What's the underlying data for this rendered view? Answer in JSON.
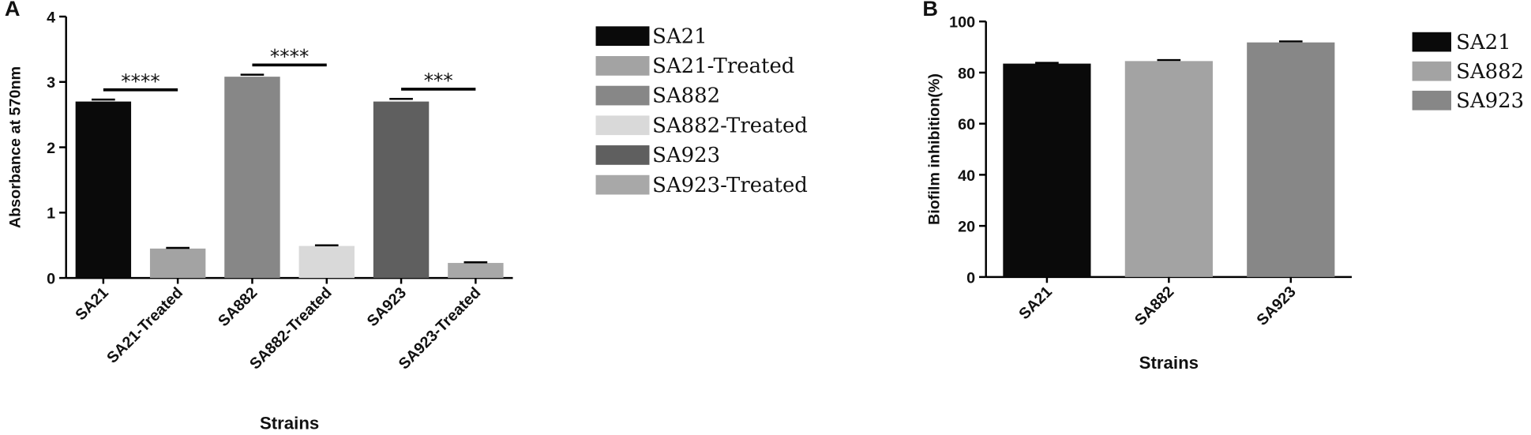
{
  "chart_data": [
    {
      "type": "bar",
      "panel": "A",
      "ylabel": "Absorbance at 570nm",
      "xlabel": "Strains",
      "categories": [
        "SA21",
        "SA21-Treated",
        "SA882",
        "SA882-Treated",
        "SA923",
        "SA923-Treated"
      ],
      "values": [
        2.7,
        0.45,
        3.08,
        0.49,
        2.7,
        0.23
      ],
      "errors": [
        0.03,
        0.01,
        0.03,
        0.01,
        0.04,
        0.01
      ],
      "colors": [
        "#0a0a0a",
        "#a3a3a3",
        "#878787",
        "#d9d9d9",
        "#5f5f5f",
        "#a8a8a8"
      ],
      "annotations": [
        "****",
        "****",
        "***"
      ],
      "ylim": [
        0,
        4
      ],
      "yticks": [
        0,
        1,
        2,
        3,
        4
      ],
      "legend": "right"
    },
    {
      "type": "bar",
      "panel": "B",
      "ylabel": "Biofilm inhibition(%)",
      "xlabel": "Strains",
      "categories": [
        "SA21",
        "SA882",
        "SA923"
      ],
      "values": [
        83.5,
        84.5,
        91.8
      ],
      "errors": [
        0.3,
        0.4,
        0.4
      ],
      "colors": [
        "#0a0a0a",
        "#a3a3a3",
        "#878787"
      ],
      "ylim": [
        0,
        100
      ],
      "yticks": [
        0,
        20,
        40,
        60,
        80,
        100
      ],
      "legend": "right"
    }
  ]
}
